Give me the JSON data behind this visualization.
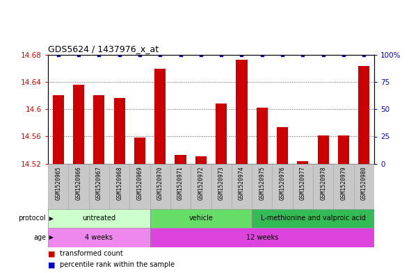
{
  "title": "GDS5624 / 1437976_x_at",
  "samples": [
    "GSM1520965",
    "GSM1520966",
    "GSM1520967",
    "GSM1520968",
    "GSM1520969",
    "GSM1520970",
    "GSM1520971",
    "GSM1520972",
    "GSM1520973",
    "GSM1520974",
    "GSM1520975",
    "GSM1520976",
    "GSM1520977",
    "GSM1520978",
    "GSM1520979",
    "GSM1520980"
  ],
  "values": [
    14.621,
    14.636,
    14.621,
    14.616,
    14.558,
    14.659,
    14.533,
    14.531,
    14.608,
    14.672,
    14.602,
    14.574,
    14.524,
    14.562,
    14.562,
    14.663
  ],
  "bar_color": "#cc0000",
  "percentile_color": "#0000cc",
  "ymin": 14.52,
  "ymax": 14.68,
  "yticks": [
    14.52,
    14.56,
    14.6,
    14.64,
    14.68
  ],
  "ytick_labels": [
    "14.52",
    "14.56",
    "14.6",
    "14.64",
    "14.68"
  ],
  "right_yticks": [
    0,
    25,
    50,
    75,
    100
  ],
  "right_ytick_labels": [
    "0",
    "25",
    "50",
    "75",
    "100%"
  ],
  "protocol_groups": [
    {
      "label": "untreated",
      "start": 0,
      "end": 5,
      "color": "#ccffcc"
    },
    {
      "label": "vehicle",
      "start": 5,
      "end": 10,
      "color": "#66dd66"
    },
    {
      "label": "L-methionine and valproic acid",
      "start": 10,
      "end": 16,
      "color": "#33bb55"
    }
  ],
  "age_groups": [
    {
      "label": "4 weeks",
      "start": 0,
      "end": 5,
      "color": "#ee88ee"
    },
    {
      "label": "12 weeks",
      "start": 5,
      "end": 16,
      "color": "#dd44dd"
    }
  ],
  "legend_items": [
    {
      "label": "transformed count",
      "color": "#cc0000"
    },
    {
      "label": "percentile rank within the sample",
      "color": "#0000cc"
    }
  ],
  "axis_label_color_left": "#cc0000",
  "axis_label_color_right": "#0000cc",
  "bg_color": "#ffffff",
  "grid_color": "#555555",
  "cell_bg": "#c8c8c8",
  "cell_edge": "#aaaaaa"
}
